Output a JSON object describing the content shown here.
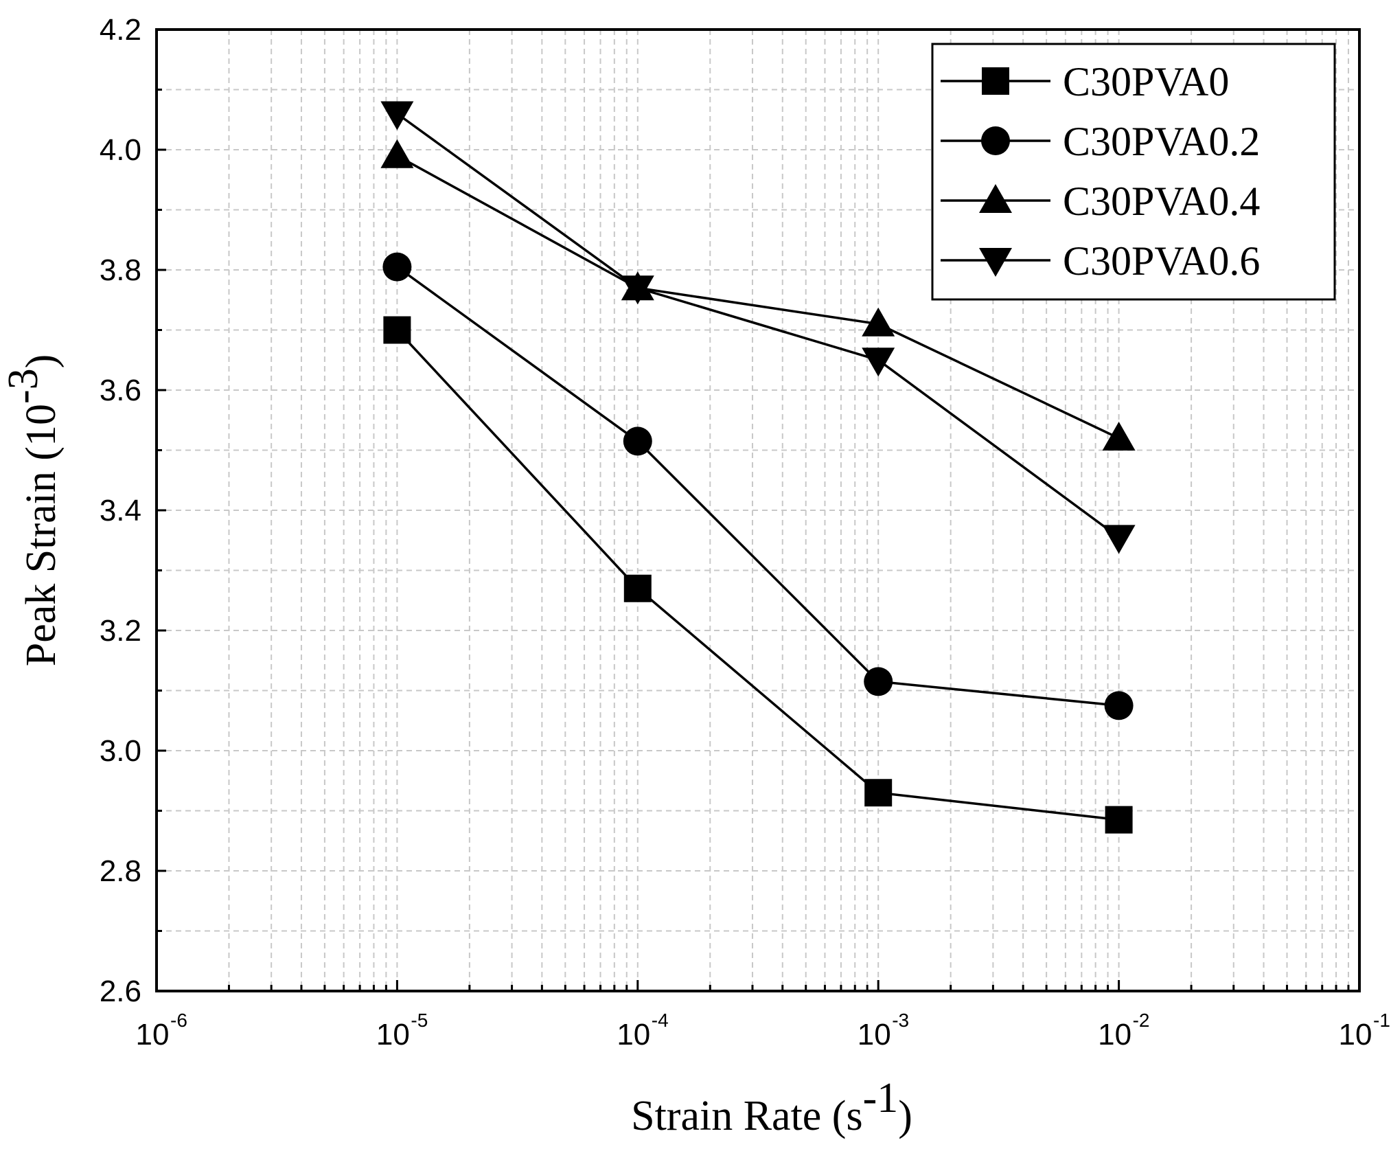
{
  "chart_data": {
    "type": "line",
    "x_scale": "log",
    "x": [
      1e-05,
      0.0001,
      0.001,
      0.01
    ],
    "xlim": [
      1e-06,
      0.1
    ],
    "ylim": [
      2.6,
      4.2
    ],
    "y_ticks": [
      2.6,
      2.8,
      3.0,
      3.2,
      3.4,
      3.6,
      3.8,
      4.0,
      4.2
    ],
    "y_tick_labels": [
      "2.6",
      "2.8",
      "3.0",
      "3.2",
      "3.4",
      "3.6",
      "3.8",
      "4.0",
      "4.2"
    ],
    "x_tick_labels": [
      {
        "base": "10",
        "exp": "-6"
      },
      {
        "base": "10",
        "exp": "-5"
      },
      {
        "base": "10",
        "exp": "-4"
      },
      {
        "base": "10",
        "exp": "-3"
      },
      {
        "base": "10",
        "exp": "-2"
      },
      {
        "base": "10",
        "exp": "-1"
      }
    ],
    "xlabel": {
      "text": "Strain Rate (s",
      "exp": "-1",
      "close": ")"
    },
    "ylabel": {
      "text": "Peak Strain (10",
      "exp": "-3",
      "close": ")"
    },
    "grid": true,
    "legend_position": "top-right",
    "series": [
      {
        "name": "C30PVA0",
        "marker": "square",
        "values": [
          3.7,
          3.27,
          2.93,
          2.885
        ]
      },
      {
        "name": "C30PVA0.2",
        "marker": "circle",
        "values": [
          3.805,
          3.515,
          3.115,
          3.075
        ]
      },
      {
        "name": "C30PVA0.4",
        "marker": "triangle-up",
        "values": [
          3.99,
          3.77,
          3.71,
          3.52
        ]
      },
      {
        "name": "C30PVA0.6",
        "marker": "triangle-down",
        "values": [
          4.06,
          3.77,
          3.65,
          3.355
        ]
      }
    ]
  },
  "colors": {
    "line": "#000000",
    "grid": "#c8c8c8",
    "background": "#ffffff"
  }
}
